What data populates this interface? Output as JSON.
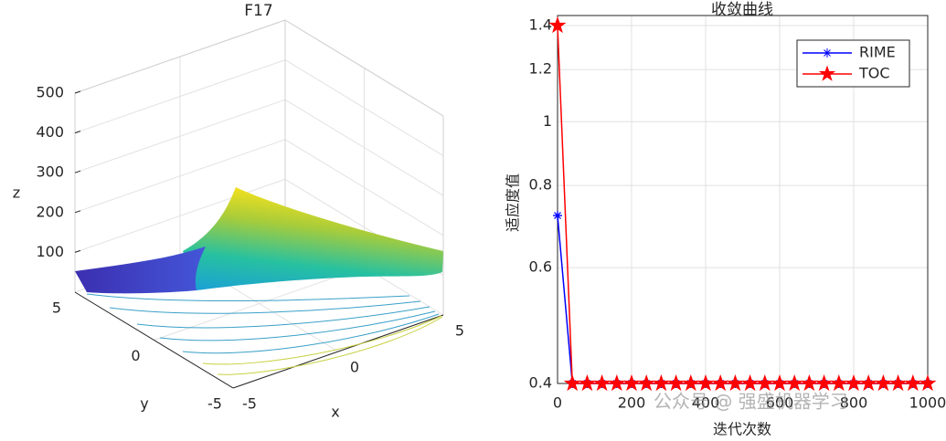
{
  "chart_data": [
    {
      "type": "surface",
      "title": "F17",
      "xlabel": "x",
      "ylabel": "y",
      "zlabel": "z",
      "xlim": [
        -5,
        5
      ],
      "ylim": [
        -5,
        5
      ],
      "zlim": [
        0,
        500
      ],
      "xticks": [
        -5,
        0,
        5
      ],
      "yticks": [
        -5,
        0,
        5
      ],
      "zticks": [
        100,
        200,
        300,
        400,
        500
      ],
      "grid": true
    },
    {
      "type": "line",
      "title": "收敛曲线",
      "xlabel": "迭代次数",
      "ylabel": "适应度值",
      "x": [
        0,
        40,
        80,
        120,
        160,
        200,
        240,
        280,
        320,
        360,
        400,
        440,
        480,
        520,
        560,
        600,
        640,
        680,
        720,
        760,
        800,
        840,
        880,
        920,
        960,
        1000
      ],
      "xlim": [
        0,
        1000
      ],
      "ylim": [
        0.4,
        1.45
      ],
      "log_y": true,
      "grid": true,
      "legend": "northeast",
      "xticks": [
        0,
        200,
        400,
        600,
        800,
        1000
      ],
      "yticks": [
        0.4,
        0.6,
        0.8,
        1,
        1.2,
        1.4
      ],
      "series": [
        {
          "name": "RIME",
          "color": "#0000ff",
          "marker": "asterisk",
          "values": [
            0.72,
            0.4,
            0.4,
            0.4,
            0.4,
            0.4,
            0.4,
            0.4,
            0.4,
            0.4,
            0.4,
            0.4,
            0.4,
            0.4,
            0.4,
            0.4,
            0.4,
            0.4,
            0.4,
            0.4,
            0.4,
            0.4,
            0.4,
            0.4,
            0.4,
            0.4
          ]
        },
        {
          "name": "TOC",
          "color": "#ff0000",
          "marker": "pentagram",
          "values": [
            1.4,
            0.4,
            0.4,
            0.4,
            0.4,
            0.4,
            0.4,
            0.4,
            0.4,
            0.4,
            0.4,
            0.4,
            0.4,
            0.4,
            0.4,
            0.4,
            0.4,
            0.4,
            0.4,
            0.4,
            0.4,
            0.4,
            0.4,
            0.4,
            0.4,
            0.4
          ]
        }
      ]
    }
  ],
  "watermark": "公众号 @ 强盛机器学习"
}
